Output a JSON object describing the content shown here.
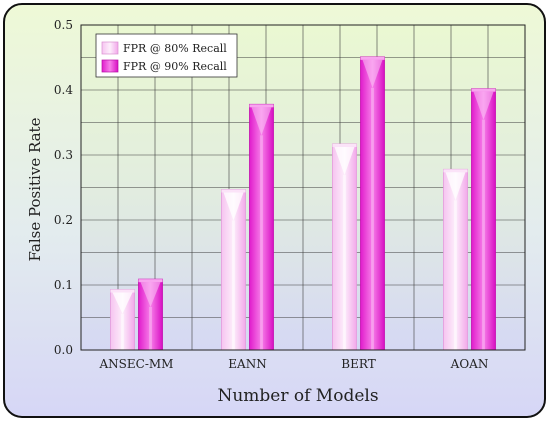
{
  "chart_data": {
    "type": "bar",
    "categories": [
      "ANSEC-MM",
      "EANN",
      "BERT",
      "AOAN"
    ],
    "series": [
      {
        "name": "FPR @ 80% Recall",
        "values": [
          0.093,
          0.247,
          0.317,
          0.278
        ],
        "color": "#f7b6ef"
      },
      {
        "name": "FPR @ 90% Recall",
        "values": [
          0.109,
          0.378,
          0.451,
          0.402
        ],
        "color": "#ee2fd9"
      }
    ],
    "title": "",
    "xlabel": "Number of Models",
    "ylabel": "False Positive Rate",
    "ylim": [
      0,
      0.5
    ],
    "yticks": [
      "0.0",
      "0.1",
      "0.2",
      "0.3",
      "0.4",
      "0.5"
    ],
    "grid": true,
    "legend_position": "top-left"
  }
}
